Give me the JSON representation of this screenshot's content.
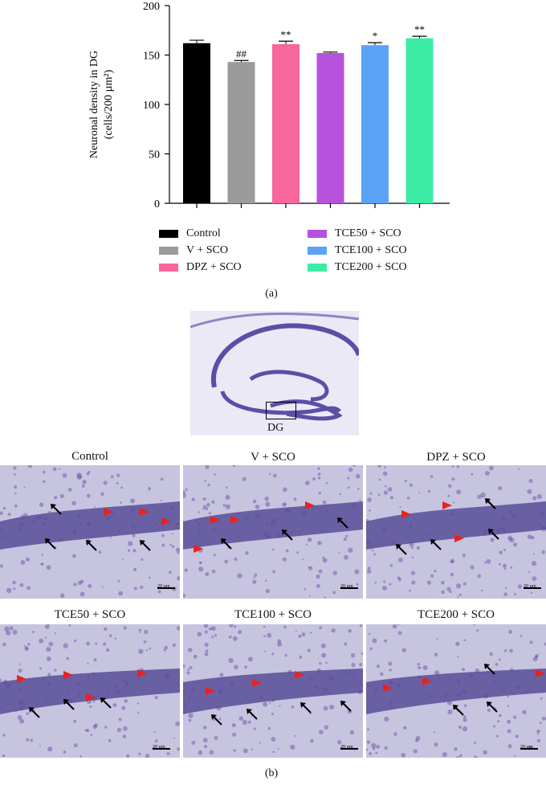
{
  "chart_data": {
    "type": "bar",
    "ylabel_line1": "Neuronal density in DG",
    "ylabel_line2": "(cells/200 µm²)",
    "ylim": [
      0,
      200
    ],
    "yticks": [
      "0",
      "50",
      "100",
      "150",
      "200"
    ],
    "series": [
      {
        "name": "Control",
        "value": 162,
        "error": 3,
        "color": "#000000",
        "annotation": ""
      },
      {
        "name": "V + SCO",
        "value": 143,
        "error": 1.5,
        "color": "#9b9b9b",
        "annotation": "##"
      },
      {
        "name": "DPZ + SCO",
        "value": 161,
        "error": 3,
        "color": "#f7679b",
        "annotation": "**"
      },
      {
        "name": "TCE50 + SCO",
        "value": 152,
        "error": 1,
        "color": "#b652dc",
        "annotation": ""
      },
      {
        "name": "TCE100 + SCO",
        "value": 160,
        "error": 2.5,
        "color": "#5aa3f7",
        "annotation": "*"
      },
      {
        "name": "TCE200 + SCO",
        "value": 167,
        "error": 2,
        "color": "#3ceca5",
        "annotation": "**"
      }
    ]
  },
  "captions": {
    "a": "(a)",
    "b": "(b)"
  },
  "overview": {
    "region_label": "DG"
  },
  "micrographs": [
    {
      "title": "Control",
      "scale": "20 µm"
    },
    {
      "title": "V + SCO",
      "scale": "20 µm"
    },
    {
      "title": "DPZ + SCO",
      "scale": "20 µm"
    },
    {
      "title": "TCE50 + SCO",
      "scale": "20 µm"
    },
    {
      "title": "TCE100 + SCO",
      "scale": "20 µm"
    },
    {
      "title": "TCE200 + SCO",
      "scale": "20 µm"
    }
  ],
  "colors": {
    "stain_dark": "#4a3d8f",
    "stain_light": "#c3c0de",
    "arrow_red": "#e8231c",
    "arrow_black": "#000000"
  }
}
